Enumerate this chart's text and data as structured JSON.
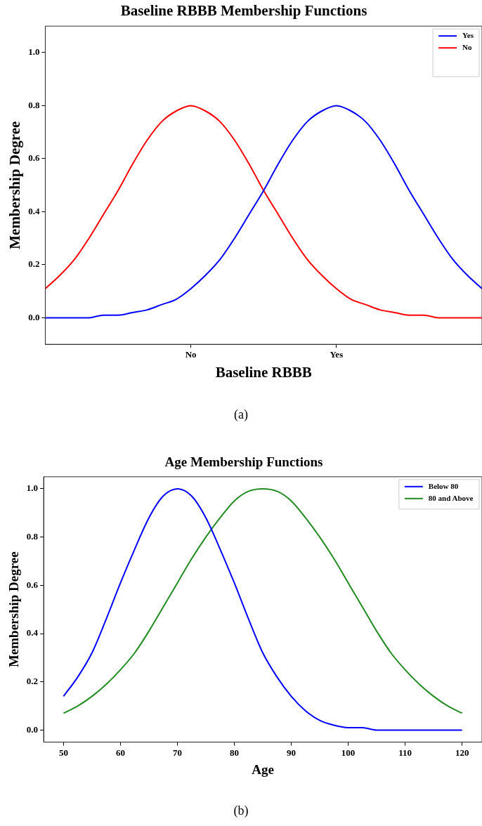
{
  "chart_data": [
    {
      "type": "line",
      "title": "Baseline RBBB Membership Functions",
      "xlabel": "Baseline RBBB",
      "ylabel": "Membership Degree",
      "categories": [
        null,
        null,
        null,
        null,
        null,
        null,
        null,
        null,
        null,
        null,
        "No",
        null,
        null,
        null,
        null,
        null,
        null,
        null,
        null,
        null,
        "Yes",
        null,
        null,
        null,
        null,
        null,
        null,
        null,
        null,
        null,
        null
      ],
      "series": [
        {
          "name": "Yes",
          "color": "#0000ff",
          "values": [
            0,
            0,
            0,
            0,
            0.01,
            0.01,
            0.02,
            0.03,
            0.05,
            0.07,
            0.11,
            0.16,
            0.22,
            0.3,
            0.39,
            0.48,
            0.58,
            0.67,
            0.74,
            0.78,
            0.8,
            0.78,
            0.74,
            0.67,
            0.58,
            0.48,
            0.39,
            0.3,
            0.22,
            0.16,
            0.11
          ]
        },
        {
          "name": "No",
          "color": "#ff0000",
          "values": [
            0.11,
            0.16,
            0.22,
            0.3,
            0.39,
            0.48,
            0.58,
            0.67,
            0.74,
            0.78,
            0.8,
            0.78,
            0.74,
            0.67,
            0.58,
            0.48,
            0.39,
            0.3,
            0.22,
            0.16,
            0.11,
            0.07,
            0.05,
            0.03,
            0.02,
            0.01,
            0.01,
            0,
            0,
            0,
            0
          ]
        }
      ],
      "ylim": [
        -0.1,
        1.1
      ],
      "yticks": [
        {
          "value": 0,
          "label": "0.0"
        },
        {
          "value": 0.2,
          "label": "0.2"
        },
        {
          "value": 0.4,
          "label": "0.4"
        },
        {
          "value": 0.6,
          "label": "0.6"
        },
        {
          "value": 0.8,
          "label": "0.8"
        },
        {
          "value": 1,
          "label": "1.0"
        }
      ],
      "legend": "top right",
      "annotations": [
        "(a)"
      ]
    },
    {
      "type": "line",
      "title": "Age Membership Functions",
      "xlabel": "Age",
      "ylabel": "Membership Degree",
      "x": [
        50,
        52.5,
        55,
        57.5,
        60,
        62.5,
        65,
        67.5,
        70,
        72.5,
        75,
        77.5,
        80,
        82.5,
        85,
        87.5,
        90,
        92.5,
        95,
        97.5,
        100,
        102.5,
        105,
        107.5,
        110,
        112.5,
        115,
        117.5,
        120
      ],
      "series": [
        {
          "name": "Below 80",
          "color": "#0000ff",
          "values": [
            0.14,
            0.22,
            0.32,
            0.46,
            0.61,
            0.75,
            0.88,
            0.97,
            1.0,
            0.97,
            0.88,
            0.75,
            0.61,
            0.46,
            0.32,
            0.22,
            0.14,
            0.08,
            0.04,
            0.02,
            0.01,
            0.01,
            0,
            0,
            0,
            0,
            0,
            0,
            0
          ]
        },
        {
          "name": "80 and Above",
          "color": "#228b22",
          "values": [
            0.07,
            0.1,
            0.14,
            0.19,
            0.25,
            0.32,
            0.41,
            0.51,
            0.61,
            0.71,
            0.8,
            0.88,
            0.95,
            0.99,
            1.0,
            0.99,
            0.95,
            0.88,
            0.8,
            0.71,
            0.61,
            0.51,
            0.41,
            0.32,
            0.25,
            0.19,
            0.14,
            0.1,
            0.07
          ]
        }
      ],
      "xlim": [
        46.5,
        123.5
      ],
      "xticks": [
        50,
        60,
        70,
        80,
        90,
        100,
        110,
        120
      ],
      "ylim": [
        -0.05,
        1.05
      ],
      "yticks": [
        {
          "value": 0,
          "label": "0.0"
        },
        {
          "value": 0.2,
          "label": "0.2"
        },
        {
          "value": 0.4,
          "label": "0.4"
        },
        {
          "value": 0.6,
          "label": "0.6"
        },
        {
          "value": 0.8,
          "label": "0.8"
        },
        {
          "value": 1,
          "label": "1.0"
        }
      ],
      "legend": "top right",
      "annotations": [
        "(b)"
      ]
    }
  ]
}
